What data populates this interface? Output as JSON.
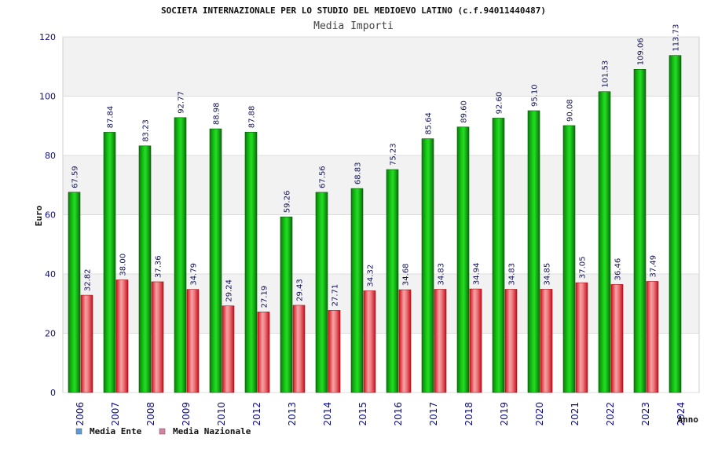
{
  "chart_data": {
    "type": "bar",
    "title": "SOCIETA INTERNAZIONALE PER LO STUDIO DEL MEDIOEVO LATINO (c.f.94011440487)",
    "subtitle": "Media Importi",
    "xlabel": "Anno",
    "ylabel": "Euro",
    "ylim": [
      0,
      120
    ],
    "yticks": [
      0,
      20,
      40,
      60,
      80,
      100,
      120
    ],
    "grid": true,
    "legend_position": "bottom-left",
    "categories": [
      "2006",
      "2007",
      "2008",
      "2009",
      "2010",
      "2012",
      "2013",
      "2014",
      "2015",
      "2016",
      "2017",
      "2018",
      "2019",
      "2020",
      "2021",
      "2022",
      "2023",
      "2024"
    ],
    "series": [
      {
        "name": "Media Ente",
        "legend_color": "#5b9bd5",
        "bar_color": "#11aa11",
        "values": [
          67.59,
          87.84,
          83.23,
          92.77,
          88.98,
          87.88,
          59.26,
          67.56,
          68.83,
          75.23,
          85.64,
          89.6,
          92.6,
          95.1,
          90.08,
          101.53,
          109.06,
          113.73
        ],
        "labels": [
          "67.59",
          "87.84",
          "83.23",
          "92.77",
          "88.98",
          "87.88",
          "59.26",
          "67.56",
          "68.83",
          "75.23",
          "85.64",
          "89.60",
          "92.60",
          "95.10",
          "90.08",
          "101.53",
          "109.06",
          "113.73"
        ]
      },
      {
        "name": "Media Nazionale",
        "legend_color": "#d97fa6",
        "bar_color": "#e8333a",
        "values": [
          32.82,
          38.0,
          37.36,
          34.79,
          29.24,
          27.19,
          29.43,
          27.71,
          34.32,
          34.68,
          34.83,
          34.94,
          34.83,
          34.85,
          37.05,
          36.46,
          37.49,
          null
        ],
        "labels": [
          "32.82",
          "38.00",
          "37.36",
          "34.79",
          "29.24",
          "27.19",
          "29.43",
          "27.71",
          "34.32",
          "34.68",
          "34.83",
          "34.94",
          "34.83",
          "34.85",
          "37.05",
          "36.46",
          "37.49",
          ""
        ]
      }
    ]
  }
}
